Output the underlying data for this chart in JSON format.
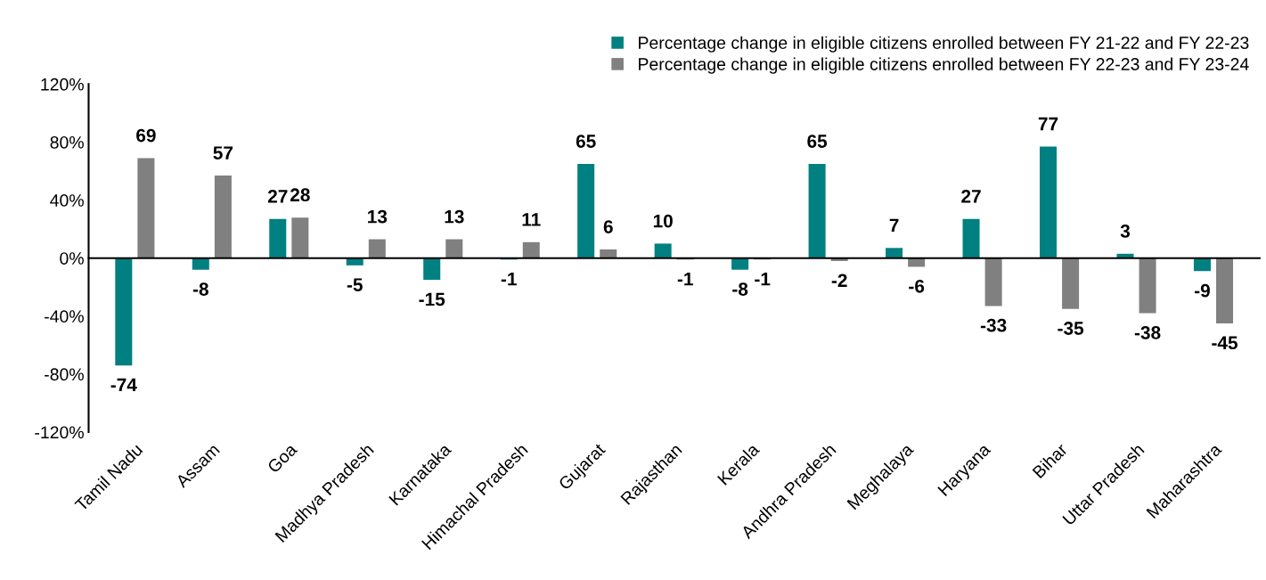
{
  "chart_data": {
    "type": "bar",
    "categories": [
      "Tamil Nadu",
      "Assam",
      "Goa",
      "Madhya Pradesh",
      "Karnataka",
      "Himachal Pradesh",
      "Gujarat",
      "Rajasthan",
      "Kerala",
      "Andhra Pradesh",
      "Meghalaya",
      "Haryana",
      "Bihar",
      "Uttar Pradesh",
      "Maharashtra"
    ],
    "series": [
      {
        "name": "Percentage change in eligible citizens enrolled between FY 21-22 and FY 22-23",
        "color": "#008080",
        "values": [
          -74,
          -8,
          27,
          -5,
          -15,
          -1,
          65,
          10,
          -8,
          65,
          7,
          27,
          77,
          3,
          -9
        ]
      },
      {
        "name": "Percentage change in eligible citizens enrolled between FY 22-23 and FY 23-24",
        "color": "#808080",
        "values": [
          69,
          57,
          28,
          13,
          13,
          11,
          6,
          -1,
          -1,
          -2,
          -6,
          -33,
          -35,
          -38,
          -45
        ]
      }
    ],
    "ylim": [
      -120,
      120
    ],
    "yticks": [
      {
        "value": -120,
        "label": "-120%"
      },
      {
        "value": -80,
        "label": "-80%"
      },
      {
        "value": -40,
        "label": "-40%"
      },
      {
        "value": 0,
        "label": "0%"
      },
      {
        "value": 40,
        "label": "40%"
      },
      {
        "value": 80,
        "label": "80%"
      },
      {
        "value": 120,
        "label": "120%"
      }
    ],
    "data_labels": true,
    "legend": "top right"
  }
}
